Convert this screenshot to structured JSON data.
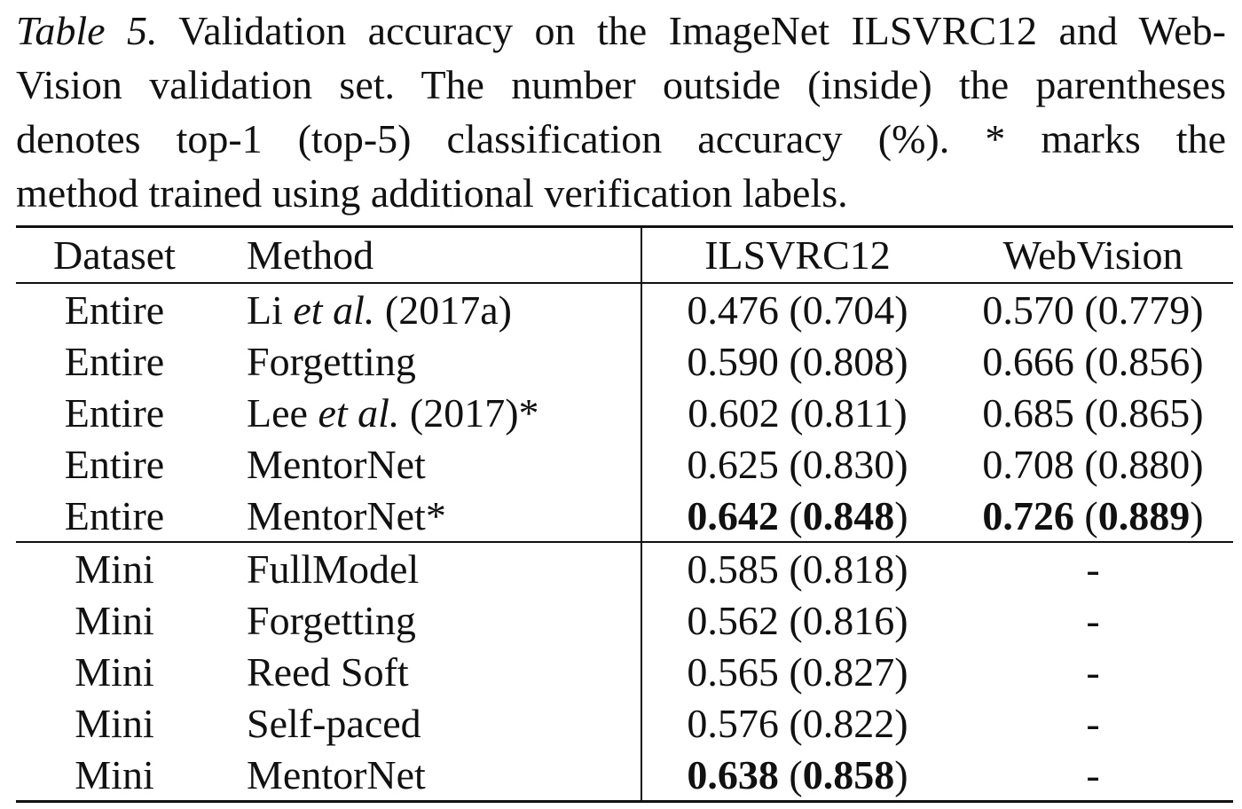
{
  "caption": {
    "label": "Table 5.",
    "lines": [
      " Validation accuracy on the ImageNet ILSVRC12 and Web-",
      "Vision validation set. The number outside (inside) the parentheses",
      "denotes top-1 (top-5) classification accuracy (%).  * marks the",
      "method trained using additional verification labels."
    ]
  },
  "table": {
    "headers": {
      "dataset": "Dataset",
      "method": "Method",
      "ilsvrc12": "ILSVRC12",
      "webvision": "WebVision"
    },
    "entire_rows": [
      {
        "dataset": "Entire",
        "method_pre": "Li ",
        "method_ital": "et al.",
        "method_post": " (2017a)",
        "ils_top1": "0.476",
        "ils_top5": "0.704",
        "web_top1": "0.570",
        "web_top5": "0.779",
        "bold": false
      },
      {
        "dataset": "Entire",
        "method_pre": "Forgetting",
        "method_ital": "",
        "method_post": "",
        "ils_top1": "0.590",
        "ils_top5": "0.808",
        "web_top1": "0.666",
        "web_top5": "0.856",
        "bold": false
      },
      {
        "dataset": "Entire",
        "method_pre": "Lee ",
        "method_ital": "et al.",
        "method_post": " (2017)*",
        "ils_top1": "0.602",
        "ils_top5": "0.811",
        "web_top1": "0.685",
        "web_top5": "0.865",
        "bold": false
      },
      {
        "dataset": "Entire",
        "method_pre": "MentorNet",
        "method_ital": "",
        "method_post": "",
        "ils_top1": "0.625",
        "ils_top5": "0.830",
        "web_top1": "0.708",
        "web_top5": "0.880",
        "bold": false
      },
      {
        "dataset": "Entire",
        "method_pre": "MentorNet*",
        "method_ital": "",
        "method_post": "",
        "ils_top1": "0.642",
        "ils_top5": "0.848",
        "web_top1": "0.726",
        "web_top5": "0.889",
        "bold": true
      }
    ],
    "mini_rows": [
      {
        "dataset": "Mini",
        "method": "FullModel",
        "ils_top1": "0.585",
        "ils_top5": "0.818",
        "web": "-",
        "bold": false
      },
      {
        "dataset": "Mini",
        "method": "Forgetting",
        "ils_top1": "0.562",
        "ils_top5": "0.816",
        "web": "-",
        "bold": false
      },
      {
        "dataset": "Mini",
        "method": "Reed Soft",
        "ils_top1": "0.565",
        "ils_top5": "0.827",
        "web": "-",
        "bold": false
      },
      {
        "dataset": "Mini",
        "method": "Self-paced",
        "ils_top1": "0.576",
        "ils_top5": "0.822",
        "web": "-",
        "bold": false
      },
      {
        "dataset": "Mini",
        "method": "MentorNet",
        "ils_top1": "0.638",
        "ils_top5": "0.858",
        "web": "-",
        "bold": true
      }
    ]
  }
}
